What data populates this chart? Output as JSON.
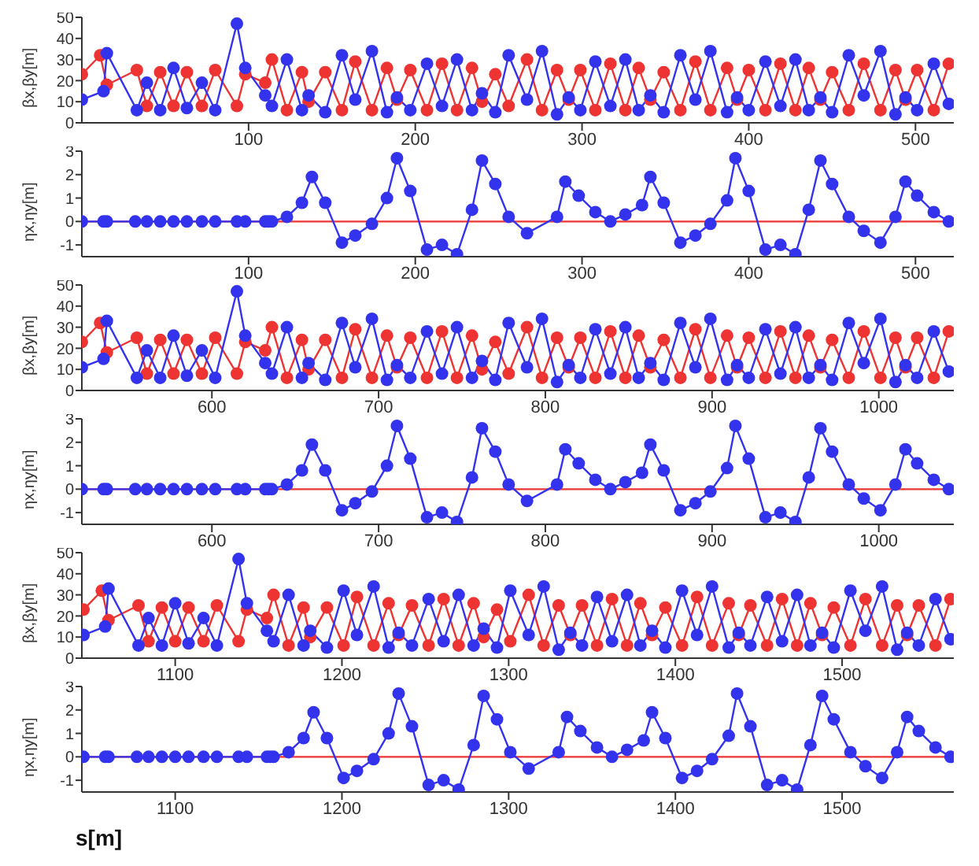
{
  "chart_data": [
    {
      "type": "line",
      "ylabel": "βx,βy[m]",
      "xlim": [
        0,
        523
      ],
      "xticks": [
        100,
        200,
        300,
        400,
        500
      ],
      "ylim": [
        0,
        50
      ],
      "yticks": [
        0,
        10,
        20,
        30,
        40,
        50
      ],
      "marker": "circle",
      "series": [
        {
          "color": "#ee3333",
          "x": [
            0,
            11,
            15,
            33,
            39,
            47,
            55,
            63,
            72,
            80,
            93,
            98,
            110,
            114,
            123,
            132,
            136,
            146,
            156,
            164,
            174,
            183,
            189,
            197,
            207,
            216,
            225,
            234,
            240,
            248,
            256,
            267,
            276,
            285,
            292,
            299,
            308,
            317,
            326,
            334,
            341,
            349,
            359,
            368,
            377,
            387,
            393,
            400,
            410,
            419,
            428,
            436,
            443,
            450,
            460,
            469,
            479,
            488,
            494,
            501,
            511,
            520
          ],
          "values": [
            23,
            32,
            18,
            25,
            8,
            24,
            8,
            24,
            8,
            25,
            8,
            23,
            19,
            30,
            6,
            24,
            10,
            24,
            6,
            29,
            6,
            26,
            11,
            25,
            6,
            28,
            6,
            26,
            10,
            23,
            8,
            30,
            6,
            25,
            11,
            25,
            6,
            28,
            6,
            26,
            11,
            24,
            6,
            29,
            6,
            26,
            11,
            25,
            6,
            28,
            6,
            26,
            11,
            24,
            6,
            28,
            6,
            25,
            11,
            25,
            6,
            28
          ]
        },
        {
          "color": "#3333ee",
          "x": [
            0,
            13,
            15,
            33,
            39,
            47,
            55,
            63,
            72,
            80,
            93,
            98,
            110,
            114,
            123,
            132,
            136,
            146,
            156,
            164,
            174,
            183,
            189,
            197,
            207,
            216,
            225,
            234,
            240,
            248,
            256,
            267,
            276,
            285,
            292,
            299,
            308,
            317,
            326,
            334,
            341,
            349,
            359,
            368,
            377,
            387,
            393,
            400,
            410,
            419,
            428,
            436,
            443,
            450,
            460,
            469,
            479,
            488,
            494,
            501,
            511,
            520
          ],
          "values": [
            11,
            15,
            33,
            6,
            19,
            6,
            26,
            7,
            19,
            6,
            47,
            26,
            13,
            8,
            30,
            6,
            13,
            5,
            32,
            11,
            34,
            5,
            12,
            6,
            28,
            8,
            30,
            6,
            14,
            5,
            32,
            11,
            34,
            4,
            12,
            6,
            29,
            8,
            30,
            6,
            13,
            5,
            32,
            11,
            34,
            5,
            12,
            6,
            29,
            8,
            30,
            6,
            12,
            5,
            32,
            13,
            34,
            4,
            12,
            6,
            28,
            9
          ]
        }
      ]
    },
    {
      "type": "line",
      "ylabel": "ηx,ηy[m]",
      "xlim": [
        0,
        523
      ],
      "xticks": [
        100,
        200,
        300,
        400,
        500
      ],
      "ylim": [
        -1.5,
        3
      ],
      "yticks": [
        -1,
        0,
        1,
        2,
        3
      ],
      "marker": "circle",
      "series": [
        {
          "color": "#ee3333",
          "marker": "none",
          "x": [
            0,
            523
          ],
          "values": [
            0,
            0
          ]
        },
        {
          "color": "#3333ee",
          "x": [
            0,
            13,
            15,
            32,
            39,
            47,
            55,
            63,
            72,
            80,
            93,
            98,
            110,
            112,
            114,
            123,
            132,
            138,
            146,
            156,
            164,
            174,
            183,
            189,
            197,
            207,
            216,
            225,
            234,
            240,
            248,
            256,
            267,
            285,
            290,
            298,
            308,
            317,
            326,
            336,
            341,
            349,
            359,
            368,
            377,
            387,
            392,
            400,
            410,
            419,
            428,
            436,
            443,
            450,
            460,
            469,
            479,
            488,
            494,
            501,
            511,
            520
          ],
          "values": [
            0,
            0,
            0,
            0,
            0,
            0,
            0,
            0,
            0,
            0,
            0,
            0,
            0,
            0,
            0,
            0.2,
            0.8,
            1.9,
            0.8,
            -0.9,
            -0.6,
            -0.1,
            1,
            2.7,
            1.3,
            -1.2,
            -1,
            -1.4,
            0.5,
            2.6,
            1.6,
            0.2,
            -0.5,
            0.2,
            1.7,
            1.1,
            0.4,
            0,
            0.3,
            0.7,
            1.9,
            0.8,
            -0.9,
            -0.6,
            -0.1,
            0.9,
            2.7,
            1.3,
            -1.2,
            -1,
            -1.4,
            0.5,
            2.6,
            1.6,
            0.2,
            -0.4,
            -0.9,
            0.2,
            1.7,
            1.1,
            0.4,
            0
          ]
        }
      ]
    },
    {
      "type": "line",
      "ylabel": "βx,βy[m]",
      "xlim": [
        522,
        1045
      ],
      "xticks": [
        600,
        700,
        800,
        900,
        1000
      ],
      "ylim": [
        0,
        50
      ],
      "yticks": [
        0,
        10,
        20,
        30,
        40,
        50
      ],
      "marker": "circle",
      "series": [
        {
          "color": "#ee3333",
          "x": [
            522,
            533,
            537,
            555,
            561,
            569,
            577,
            585,
            594,
            602,
            615,
            620,
            632,
            636,
            645,
            654,
            658,
            668,
            678,
            686,
            696,
            705,
            711,
            719,
            729,
            738,
            747,
            756,
            762,
            770,
            778,
            789,
            798,
            807,
            814,
            821,
            830,
            839,
            848,
            856,
            863,
            871,
            881,
            890,
            899,
            909,
            915,
            922,
            932,
            941,
            950,
            958,
            965,
            972,
            982,
            991,
            1001,
            1010,
            1016,
            1023,
            1033,
            1042
          ],
          "values": [
            23,
            32,
            18,
            25,
            8,
            24,
            8,
            24,
            8,
            25,
            8,
            23,
            19,
            30,
            6,
            24,
            10,
            24,
            6,
            29,
            6,
            26,
            11,
            25,
            6,
            28,
            6,
            26,
            10,
            23,
            8,
            30,
            6,
            25,
            11,
            25,
            6,
            28,
            6,
            26,
            11,
            24,
            6,
            29,
            6,
            26,
            11,
            25,
            6,
            28,
            6,
            26,
            11,
            24,
            6,
            28,
            6,
            25,
            11,
            25,
            6,
            28
          ]
        },
        {
          "color": "#3333ee",
          "x": [
            522,
            535,
            537,
            555,
            561,
            569,
            577,
            585,
            594,
            602,
            615,
            620,
            632,
            636,
            645,
            654,
            658,
            668,
            678,
            686,
            696,
            705,
            711,
            719,
            729,
            738,
            747,
            756,
            762,
            770,
            778,
            789,
            798,
            807,
            814,
            821,
            830,
            839,
            848,
            856,
            863,
            871,
            881,
            890,
            899,
            909,
            915,
            922,
            932,
            941,
            950,
            958,
            965,
            972,
            982,
            991,
            1001,
            1010,
            1016,
            1023,
            1033,
            1042
          ],
          "values": [
            11,
            15,
            33,
            6,
            19,
            6,
            26,
            7,
            19,
            6,
            47,
            26,
            13,
            8,
            30,
            6,
            13,
            5,
            32,
            11,
            34,
            5,
            12,
            6,
            28,
            8,
            30,
            6,
            14,
            5,
            32,
            11,
            34,
            4,
            12,
            6,
            29,
            8,
            30,
            6,
            13,
            5,
            32,
            11,
            34,
            5,
            12,
            6,
            29,
            8,
            30,
            6,
            12,
            5,
            32,
            13,
            34,
            4,
            12,
            6,
            28,
            9
          ]
        }
      ]
    },
    {
      "type": "line",
      "ylabel": "ηx,ηy[m]",
      "xlim": [
        522,
        1045
      ],
      "xticks": [
        600,
        700,
        800,
        900,
        1000
      ],
      "ylim": [
        -1.5,
        3
      ],
      "yticks": [
        -1,
        0,
        1,
        2,
        3
      ],
      "marker": "circle",
      "series": [
        {
          "color": "#ee3333",
          "marker": "none",
          "x": [
            522,
            1045
          ],
          "values": [
            0,
            0
          ]
        },
        {
          "color": "#3333ee",
          "x": [
            522,
            535,
            537,
            554,
            561,
            569,
            577,
            585,
            594,
            602,
            615,
            620,
            632,
            634,
            636,
            645,
            654,
            660,
            668,
            678,
            686,
            696,
            705,
            711,
            719,
            729,
            738,
            747,
            756,
            762,
            770,
            778,
            789,
            807,
            812,
            820,
            830,
            839,
            848,
            858,
            863,
            871,
            881,
            890,
            899,
            909,
            914,
            922,
            932,
            941,
            950,
            958,
            965,
            972,
            982,
            991,
            1001,
            1010,
            1016,
            1023,
            1033,
            1042
          ],
          "values": [
            0,
            0,
            0,
            0,
            0,
            0,
            0,
            0,
            0,
            0,
            0,
            0,
            0,
            0,
            0,
            0.2,
            0.8,
            1.9,
            0.8,
            -0.9,
            -0.6,
            -0.1,
            1,
            2.7,
            1.3,
            -1.2,
            -1,
            -1.4,
            0.5,
            2.6,
            1.6,
            0.2,
            -0.5,
            0.2,
            1.7,
            1.1,
            0.4,
            0,
            0.3,
            0.7,
            1.9,
            0.8,
            -0.9,
            -0.6,
            -0.1,
            0.9,
            2.7,
            1.3,
            -1.2,
            -1,
            -1.4,
            0.5,
            2.6,
            1.6,
            0.2,
            -0.4,
            -0.9,
            0.2,
            1.7,
            1.1,
            0.4,
            0
          ]
        }
      ]
    },
    {
      "type": "line",
      "ylabel": "βx,βy[m]",
      "xlim": [
        1044,
        1567
      ],
      "xticks": [
        1100,
        1200,
        1300,
        1400,
        1500
      ],
      "ylim": [
        0,
        50
      ],
      "yticks": [
        0,
        10,
        20,
        30,
        40,
        50
      ],
      "marker": "circle",
      "series": [
        {
          "color": "#ee3333",
          "x": [
            1045,
            1056,
            1060,
            1078,
            1084,
            1092,
            1100,
            1108,
            1117,
            1125,
            1138,
            1143,
            1155,
            1159,
            1168,
            1177,
            1181,
            1191,
            1201,
            1209,
            1219,
            1228,
            1234,
            1242,
            1252,
            1261,
            1270,
            1279,
            1285,
            1293,
            1301,
            1312,
            1321,
            1330,
            1337,
            1344,
            1353,
            1362,
            1371,
            1379,
            1386,
            1394,
            1404,
            1413,
            1422,
            1432,
            1438,
            1445,
            1455,
            1464,
            1473,
            1481,
            1488,
            1495,
            1505,
            1514,
            1524,
            1533,
            1539,
            1546,
            1556,
            1565
          ],
          "values": [
            23,
            32,
            18,
            25,
            8,
            24,
            8,
            24,
            8,
            25,
            8,
            23,
            19,
            30,
            6,
            24,
            10,
            24,
            6,
            29,
            6,
            26,
            11,
            25,
            6,
            28,
            6,
            26,
            10,
            23,
            8,
            30,
            6,
            25,
            11,
            25,
            6,
            28,
            6,
            26,
            11,
            24,
            6,
            29,
            6,
            26,
            11,
            25,
            6,
            28,
            6,
            26,
            11,
            24,
            6,
            28,
            6,
            25,
            11,
            25,
            6,
            28
          ]
        },
        {
          "color": "#3333ee",
          "x": [
            1045,
            1058,
            1060,
            1078,
            1084,
            1092,
            1100,
            1108,
            1117,
            1125,
            1138,
            1143,
            1155,
            1159,
            1168,
            1177,
            1181,
            1191,
            1201,
            1209,
            1219,
            1228,
            1234,
            1242,
            1252,
            1261,
            1270,
            1279,
            1285,
            1293,
            1301,
            1312,
            1321,
            1330,
            1337,
            1344,
            1353,
            1362,
            1371,
            1379,
            1386,
            1394,
            1404,
            1413,
            1422,
            1432,
            1438,
            1445,
            1455,
            1464,
            1473,
            1481,
            1488,
            1495,
            1505,
            1514,
            1524,
            1533,
            1539,
            1546,
            1556,
            1565
          ],
          "values": [
            11,
            15,
            33,
            6,
            19,
            6,
            26,
            7,
            19,
            6,
            47,
            26,
            13,
            8,
            30,
            6,
            13,
            5,
            32,
            11,
            34,
            5,
            12,
            6,
            28,
            8,
            30,
            6,
            14,
            5,
            32,
            11,
            34,
            4,
            12,
            6,
            29,
            8,
            30,
            6,
            13,
            5,
            32,
            11,
            34,
            5,
            12,
            6,
            29,
            8,
            30,
            6,
            12,
            5,
            32,
            13,
            34,
            4,
            12,
            6,
            28,
            9
          ]
        }
      ]
    },
    {
      "type": "line",
      "ylabel": "ηx,ηy[m]",
      "xlabel": "s[m]",
      "xlim": [
        1044,
        1567
      ],
      "xticks": [
        1100,
        1200,
        1300,
        1400,
        1500
      ],
      "ylim": [
        -1.5,
        3
      ],
      "yticks": [
        -1,
        0,
        1,
        2,
        3
      ],
      "marker": "circle",
      "series": [
        {
          "color": "#ee3333",
          "marker": "none",
          "x": [
            1044,
            1567
          ],
          "values": [
            0,
            0
          ]
        },
        {
          "color": "#3333ee",
          "x": [
            1045,
            1058,
            1060,
            1077,
            1084,
            1092,
            1100,
            1108,
            1117,
            1125,
            1138,
            1143,
            1155,
            1157,
            1159,
            1168,
            1177,
            1183,
            1191,
            1201,
            1209,
            1219,
            1228,
            1234,
            1242,
            1252,
            1261,
            1270,
            1279,
            1285,
            1293,
            1301,
            1312,
            1330,
            1335,
            1343,
            1353,
            1362,
            1371,
            1381,
            1386,
            1394,
            1404,
            1413,
            1422,
            1432,
            1437,
            1445,
            1455,
            1464,
            1473,
            1481,
            1488,
            1495,
            1505,
            1514,
            1524,
            1533,
            1539,
            1546,
            1556,
            1565
          ],
          "values": [
            0,
            0,
            0,
            0,
            0,
            0,
            0,
            0,
            0,
            0,
            0,
            0,
            0,
            0,
            0,
            0.2,
            0.8,
            1.9,
            0.8,
            -0.9,
            -0.6,
            -0.1,
            1,
            2.7,
            1.3,
            -1.2,
            -1,
            -1.4,
            0.5,
            2.6,
            1.6,
            0.2,
            -0.5,
            0.2,
            1.7,
            1.1,
            0.4,
            0,
            0.3,
            0.7,
            1.9,
            0.8,
            -0.9,
            -0.6,
            -0.1,
            0.9,
            2.7,
            1.3,
            -1.2,
            -1,
            -1.4,
            0.5,
            2.6,
            1.6,
            0.2,
            -0.4,
            -0.9,
            0.2,
            1.7,
            1.1,
            0.4,
            0
          ]
        }
      ]
    }
  ]
}
